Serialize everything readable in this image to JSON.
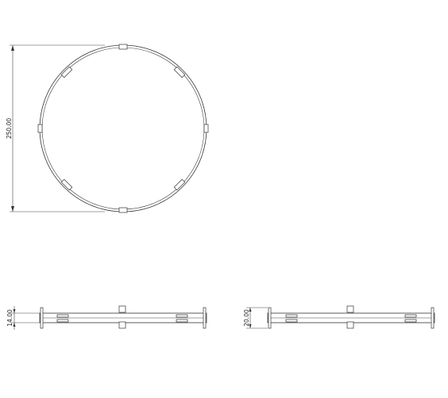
{
  "drawing": {
    "diameter_label": "250.00",
    "height_label_left": "14.00",
    "height_label_right": "20.00"
  }
}
